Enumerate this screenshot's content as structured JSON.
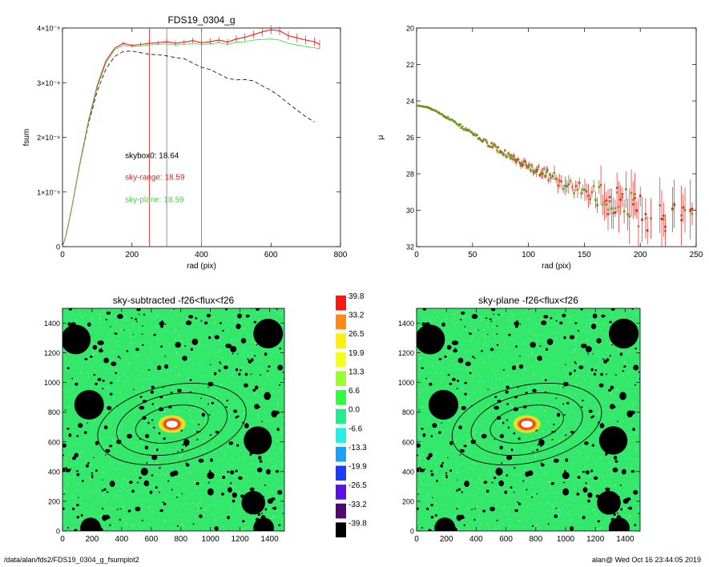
{
  "colors": {
    "red": "#e8201c",
    "green": "#3cd83c",
    "olive": "#8a7a1e",
    "gray": "#777777",
    "skyGreen": "#33e86a",
    "skyCyan": "#55ecd4"
  },
  "footer": {
    "path": "/data/alan/fds2/FDS19_0304_g_fsumplot2",
    "timestamp": "alan@  Wed Oct 16 23:44:05 2019"
  },
  "chart_data": [
    {
      "id": "fsum",
      "type": "line",
      "title": "FDS19_0304_g",
      "xlabel": "rad (pix)",
      "ylabel": "fsum",
      "xlim": [
        0,
        800
      ],
      "ylim": [
        0,
        4e-08
      ],
      "xticks": [
        {
          "v": 0,
          "t": "0"
        },
        {
          "v": 200,
          "t": "200"
        },
        {
          "v": 400,
          "t": "400"
        },
        {
          "v": 600,
          "t": "600"
        },
        {
          "v": 800,
          "t": "800"
        }
      ],
      "yticks": [
        {
          "v": 0,
          "t": "0"
        },
        {
          "v": 1e-08,
          "t": "1×10⁻⁸"
        },
        {
          "v": 2e-08,
          "t": "2×10⁻⁸"
        },
        {
          "v": 3e-08,
          "t": "3×10⁻⁸"
        },
        {
          "v": 4e-08,
          "t": "4×10⁻⁸"
        }
      ],
      "vlines": [
        {
          "x": 250,
          "color": "red"
        },
        {
          "x": 300,
          "color": "gray"
        },
        {
          "x": 400,
          "color": "gray"
        }
      ],
      "annotations": [
        {
          "text": "skybox0: 18.64",
          "color": "black",
          "x": 180,
          "y": 1.62e-08
        },
        {
          "text": "sky-range: 18.59",
          "color": "red",
          "x": 180,
          "y": 1.22e-08
        },
        {
          "text": "sky-plane: 18.59",
          "color": "green",
          "x": 180,
          "y": 8.1e-09
        }
      ],
      "series": [
        {
          "color": "black",
          "dash": true,
          "x": [
            0,
            10,
            25,
            50,
            75,
            100,
            125,
            150,
            175,
            200,
            225,
            250,
            275,
            300,
            325,
            350,
            375,
            400,
            425,
            450,
            475,
            500,
            525,
            550,
            575,
            600,
            625,
            650,
            675,
            700,
            725
          ],
          "y": [
            0.0,
            0.2,
            0.65,
            1.5,
            2.25,
            2.85,
            3.25,
            3.48,
            3.57,
            3.58,
            3.55,
            3.52,
            3.51,
            3.49,
            3.46,
            3.44,
            3.36,
            3.28,
            3.24,
            3.16,
            3.08,
            3.05,
            3.06,
            3.03,
            2.94,
            2.86,
            2.75,
            2.62,
            2.5,
            2.38,
            2.28
          ]
        },
        {
          "color": "red",
          "errorbars": true,
          "x": [
            0,
            10,
            25,
            50,
            75,
            100,
            125,
            150,
            175,
            200,
            225,
            250,
            275,
            300,
            325,
            350,
            375,
            400,
            425,
            450,
            475,
            500,
            525,
            550,
            575,
            600,
            625,
            650,
            675,
            700,
            725,
            740
          ],
          "y": [
            0.0,
            0.2,
            0.65,
            1.52,
            2.3,
            2.95,
            3.4,
            3.63,
            3.72,
            3.68,
            3.7,
            3.72,
            3.73,
            3.75,
            3.72,
            3.74,
            3.77,
            3.73,
            3.75,
            3.78,
            3.74,
            3.8,
            3.83,
            3.88,
            3.93,
            3.97,
            3.95,
            3.86,
            3.82,
            3.78,
            3.75,
            3.7
          ],
          "err": [
            0,
            0,
            0,
            0,
            0,
            0,
            0,
            0,
            0.03,
            0.03,
            0.04,
            0.04,
            0.04,
            0.05,
            0.05,
            0.05,
            0.05,
            0.05,
            0.06,
            0.06,
            0.06,
            0.07,
            0.07,
            0.07,
            0.08,
            0.08,
            0.08,
            0.08,
            0.08,
            0.08,
            0.08,
            0.08
          ]
        },
        {
          "color": "green",
          "x": [
            0,
            10,
            25,
            50,
            75,
            100,
            125,
            150,
            175,
            200,
            225,
            250,
            275,
            300,
            325,
            350,
            375,
            400,
            425,
            450,
            475,
            500,
            525,
            550,
            575,
            600,
            625,
            650,
            675,
            700,
            725,
            740
          ],
          "y": [
            0.0,
            0.2,
            0.65,
            1.5,
            2.28,
            2.92,
            3.36,
            3.6,
            3.68,
            3.66,
            3.67,
            3.69,
            3.7,
            3.71,
            3.69,
            3.7,
            3.72,
            3.7,
            3.71,
            3.73,
            3.7,
            3.74,
            3.75,
            3.78,
            3.79,
            3.8,
            3.78,
            3.72,
            3.69,
            3.66,
            3.64,
            3.62
          ]
        }
      ]
    },
    {
      "id": "mu",
      "type": "scatter",
      "xlabel": "rad (pix)",
      "ylabel": "μ",
      "xlim": [
        0,
        250
      ],
      "ylim": [
        32,
        20
      ],
      "xticks": [
        {
          "v": 0,
          "t": "0"
        },
        {
          "v": 50,
          "t": "50"
        },
        {
          "v": 100,
          "t": "100"
        },
        {
          "v": 150,
          "t": "150"
        },
        {
          "v": 200,
          "t": "200"
        },
        {
          "v": 250,
          "t": "250"
        }
      ],
      "yticks": [
        {
          "v": 20,
          "t": "20"
        },
        {
          "v": 22,
          "t": "22"
        },
        {
          "v": 24,
          "t": "24"
        },
        {
          "v": 26,
          "t": "26"
        },
        {
          "v": 28,
          "t": "28"
        },
        {
          "v": 30,
          "t": "30"
        },
        {
          "v": 32,
          "t": "32"
        }
      ],
      "profile": {
        "x": [
          0,
          10,
          20,
          30,
          40,
          50,
          60,
          70,
          80,
          90,
          100,
          110,
          120,
          130,
          140,
          150,
          160,
          170,
          180,
          190,
          200,
          210,
          220,
          230,
          240,
          245
        ],
        "y": [
          24.25,
          24.35,
          24.65,
          25.0,
          25.4,
          25.8,
          26.2,
          26.55,
          26.9,
          27.25,
          27.6,
          27.85,
          28.15,
          28.45,
          28.7,
          28.95,
          29.15,
          29.35,
          29.55,
          29.75,
          30.0,
          30.2,
          30.4,
          30.6,
          30.8,
          30.9
        ],
        "err": [
          0.02,
          0.02,
          0.03,
          0.04,
          0.05,
          0.06,
          0.08,
          0.1,
          0.12,
          0.16,
          0.2,
          0.24,
          0.3,
          0.36,
          0.45,
          0.55,
          0.7,
          0.85,
          1.0,
          1.1,
          1.2,
          1.2,
          1.2,
          1.2,
          1.2,
          1.2
        ],
        "scatter": [
          0.0,
          0.0,
          0.05,
          0.06,
          0.08,
          0.1,
          0.12,
          0.14,
          0.15,
          0.18,
          0.2,
          0.25,
          0.3,
          0.35,
          0.4,
          0.5,
          0.6,
          0.7,
          0.8,
          0.9,
          1.0,
          1.0,
          1.0,
          1.0,
          1.0,
          1.0
        ]
      }
    },
    {
      "id": "img1",
      "type": "heatmap",
      "title": "sky-subtracted -f26<flux<f26",
      "xlim": [
        0,
        1500
      ],
      "ylim": [
        0,
        1500
      ],
      "xticks": [
        {
          "v": 0,
          "t": "0"
        },
        {
          "v": 200,
          "t": "200"
        },
        {
          "v": 400,
          "t": "400"
        },
        {
          "v": 600,
          "t": "600"
        },
        {
          "v": 800,
          "t": "800"
        },
        {
          "v": 1000,
          "t": "1000"
        },
        {
          "v": 1200,
          "t": "1200"
        },
        {
          "v": 1400,
          "t": "1400"
        }
      ],
      "yticks": [
        {
          "v": 0,
          "t": "0"
        },
        {
          "v": 200,
          "t": "200"
        },
        {
          "v": 400,
          "t": "400"
        },
        {
          "v": 600,
          "t": "600"
        },
        {
          "v": 800,
          "t": "800"
        },
        {
          "v": 1000,
          "t": "1000"
        },
        {
          "v": 1200,
          "t": "1200"
        },
        {
          "v": 1400,
          "t": "1400"
        }
      ],
      "center": [
        740,
        720
      ],
      "ellipses": [
        [
          250,
          120
        ],
        [
          380,
          200
        ],
        [
          510,
          260
        ]
      ],
      "ellipse_angle": -12,
      "big_masks": [
        [
          90,
          1290,
          100
        ],
        [
          1390,
          1330,
          100
        ],
        [
          180,
          850,
          100
        ],
        [
          1320,
          610,
          95
        ],
        [
          1290,
          190,
          80
        ],
        [
          190,
          20,
          70
        ],
        [
          1360,
          20,
          70
        ]
      ]
    },
    {
      "id": "img2",
      "type": "heatmap",
      "title": "sky-plane -f26<flux<f26",
      "xlim": [
        0,
        1500
      ],
      "ylim": [
        0,
        1500
      ],
      "xticks": [
        {
          "v": 0,
          "t": "0"
        },
        {
          "v": 200,
          "t": "200"
        },
        {
          "v": 400,
          "t": "400"
        },
        {
          "v": 600,
          "t": "600"
        },
        {
          "v": 800,
          "t": "800"
        },
        {
          "v": 1000,
          "t": "1000"
        },
        {
          "v": 1200,
          "t": "1200"
        },
        {
          "v": 1400,
          "t": "1400"
        }
      ],
      "yticks": [
        {
          "v": 0,
          "t": "0"
        },
        {
          "v": 200,
          "t": "200"
        },
        {
          "v": 400,
          "t": "400"
        },
        {
          "v": 600,
          "t": "600"
        },
        {
          "v": 800,
          "t": "800"
        },
        {
          "v": 1000,
          "t": "1000"
        },
        {
          "v": 1200,
          "t": "1200"
        },
        {
          "v": 1400,
          "t": "1400"
        }
      ],
      "center": [
        740,
        720
      ],
      "ellipses": [
        [
          250,
          120
        ],
        [
          380,
          200
        ],
        [
          510,
          260
        ]
      ],
      "ellipse_angle": -12,
      "big_masks": [
        [
          90,
          1290,
          100
        ],
        [
          1390,
          1330,
          100
        ],
        [
          180,
          850,
          100
        ],
        [
          1320,
          610,
          95
        ],
        [
          1290,
          190,
          80
        ],
        [
          190,
          20,
          70
        ],
        [
          1360,
          20,
          70
        ]
      ]
    },
    {
      "id": "colorbar",
      "type": "colorbar",
      "levels": [
        {
          "label": "39.8",
          "color": "#ff1a10"
        },
        {
          "label": "33.2",
          "color": "#ff8a14"
        },
        {
          "label": "26.5",
          "color": "#ffee10"
        },
        {
          "label": "19.9",
          "color": "#f6ff1a"
        },
        {
          "label": "13.3",
          "color": "#9aff2a"
        },
        {
          "label": "6.6",
          "color": "#2cff3c"
        },
        {
          "label": "0.0",
          "color": "#22ee8c"
        },
        {
          "label": "-6.6",
          "color": "#22f2e6"
        },
        {
          "label": "-13.3",
          "color": "#1aa0ff"
        },
        {
          "label": "-19.9",
          "color": "#1a3cff"
        },
        {
          "label": "-26.5",
          "color": "#5a10e6"
        },
        {
          "label": "-33.2",
          "color": "#500a6e"
        },
        {
          "label": "-39.8",
          "color": "#000000"
        }
      ]
    }
  ]
}
